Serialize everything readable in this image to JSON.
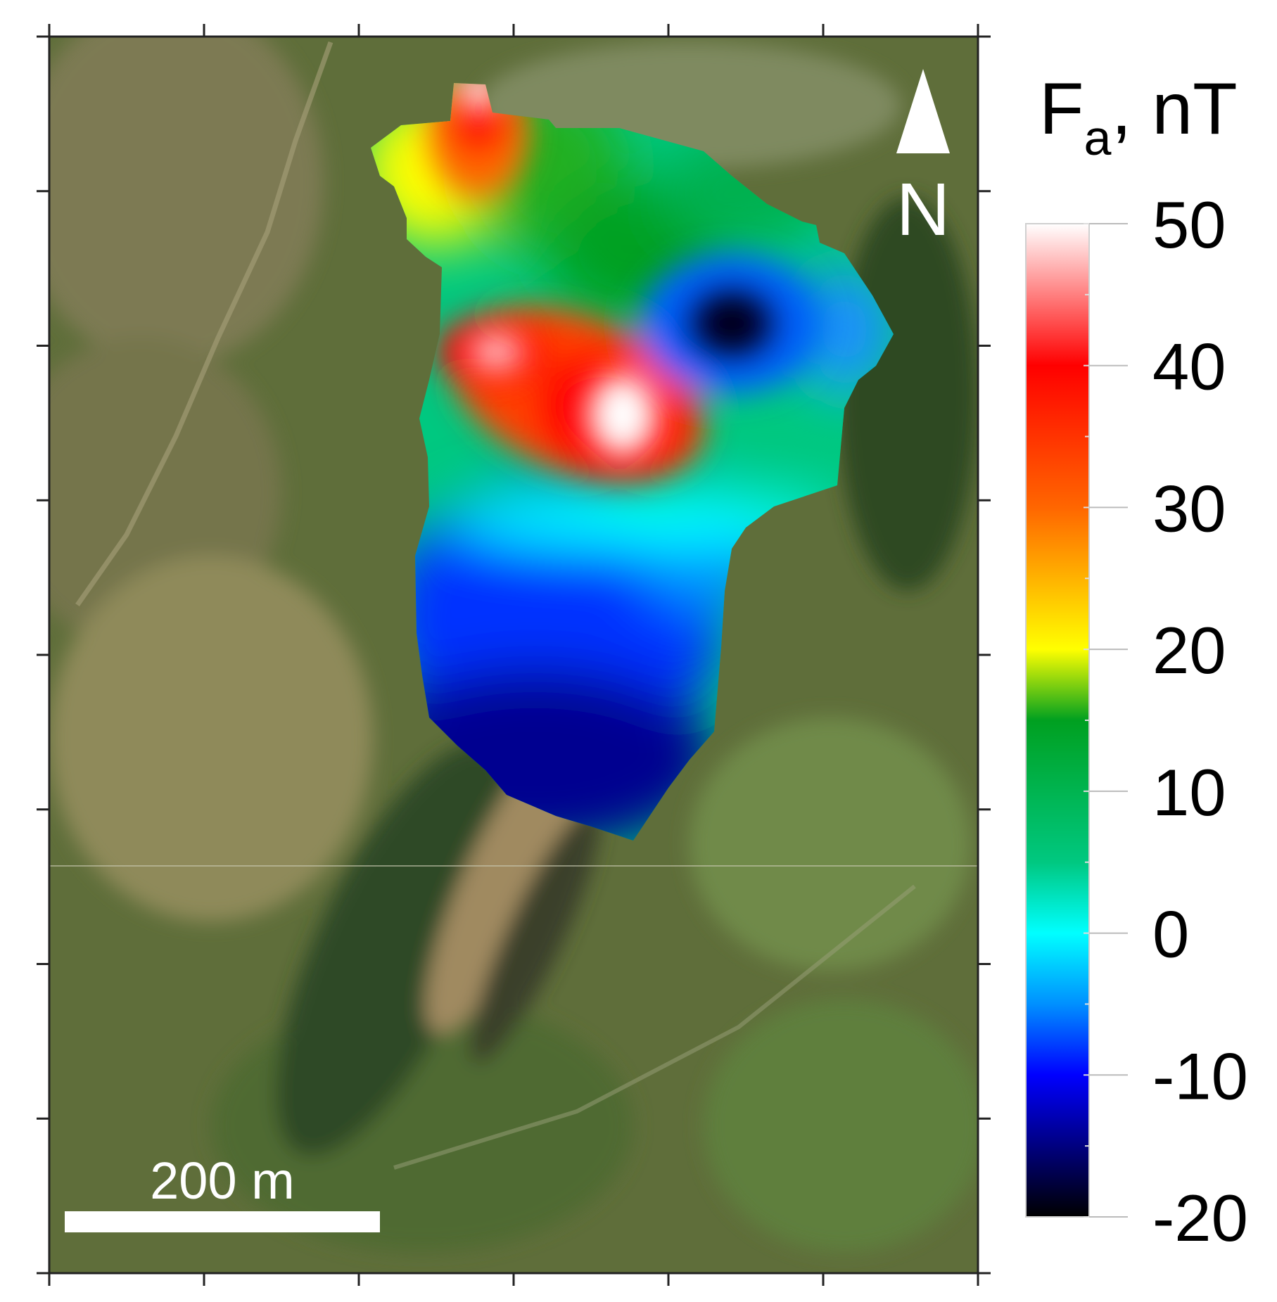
{
  "map": {
    "type": "magnetic anomaly map over satellite image",
    "frame_ticks": {
      "x_count": 7,
      "y_count": 9,
      "tick_labels_shown": false
    }
  },
  "scale_bar": {
    "label": "200 m"
  },
  "north_arrow": {
    "label": "N"
  },
  "colorbar": {
    "title_main": "F",
    "title_sub": "a",
    "title_unit": ", nT",
    "min": -20,
    "max": 50,
    "tick_labels": [
      "50",
      "40",
      "30",
      "20",
      "10",
      "0",
      "-10",
      "-20"
    ],
    "tick_values": [
      50,
      40,
      30,
      20,
      10,
      0,
      -10,
      -20
    ],
    "colormap": [
      {
        "value": 50,
        "color": "#ffffff"
      },
      {
        "value": 40,
        "color": "#ff0000"
      },
      {
        "value": 30,
        "color": "#ff6600"
      },
      {
        "value": 20,
        "color": "#ffff00"
      },
      {
        "value": 15,
        "color": "#00a020"
      },
      {
        "value": 5,
        "color": "#00c880"
      },
      {
        "value": 0,
        "color": "#00ffff"
      },
      {
        "value": -5,
        "color": "#0090ff"
      },
      {
        "value": -10,
        "color": "#0000ff"
      },
      {
        "value": -15,
        "color": "#000080"
      },
      {
        "value": -20,
        "color": "#000000"
      }
    ]
  },
  "colors": {
    "satellite_base": "#5f6e3a",
    "field_light": "#8f8a5a",
    "forest": "#2d4a22",
    "ravine": "#a08a60",
    "scale_bar": "#ffffff",
    "north_arrow": "#ffffff"
  }
}
